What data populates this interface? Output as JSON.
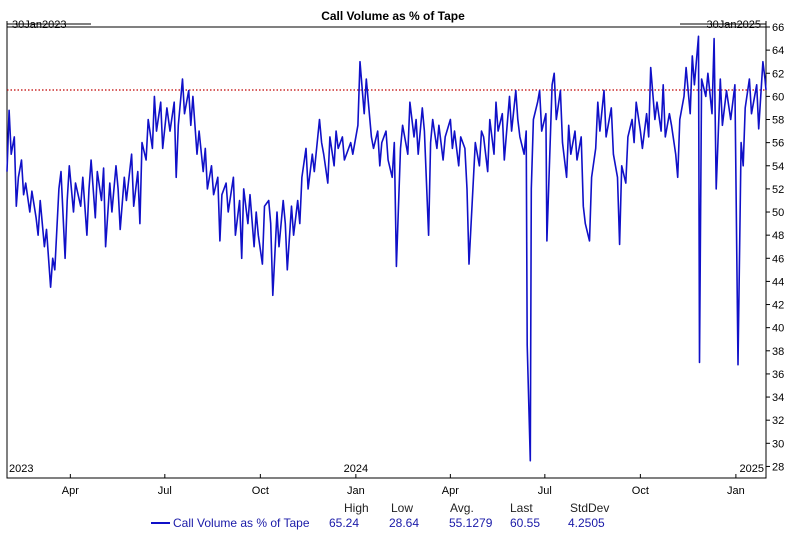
{
  "chart_data": {
    "type": "line",
    "title": "Call Volume as % of Tape",
    "start_label": "30Jan2023",
    "end_label": "30Jan2025",
    "x_range": [
      "2023-01-30",
      "2025-01-30"
    ],
    "ylim": [
      27,
      66
    ],
    "y_ticks": [
      28,
      30,
      32,
      34,
      36,
      38,
      40,
      42,
      44,
      46,
      48,
      50,
      52,
      54,
      56,
      58,
      60,
      62,
      64,
      66
    ],
    "x_month_ticks": [
      {
        "label": "Apr",
        "date": "2023-04-01"
      },
      {
        "label": "Jul",
        "date": "2023-07-01"
      },
      {
        "label": "Oct",
        "date": "2023-10-01"
      },
      {
        "label": "Jan",
        "date": "2024-01-01"
      },
      {
        "label": "Apr",
        "date": "2024-04-01"
      },
      {
        "label": "Jul",
        "date": "2024-07-01"
      },
      {
        "label": "Oct",
        "date": "2024-10-01"
      },
      {
        "label": "Jan",
        "date": "2025-01-01"
      }
    ],
    "year_labels": [
      {
        "label": "2023",
        "date": "2023-01-30"
      },
      {
        "label": "2024",
        "date": "2024-01-01"
      },
      {
        "label": "2025",
        "date": "2025-01-30"
      }
    ],
    "reference_line": {
      "value": 60.55,
      "color": "#c00000"
    },
    "series": [
      {
        "name": "Call Volume as % of Tape",
        "color": "#1010c8",
        "points": [
          [
            "2023-01-30",
            53.5
          ],
          [
            "2023-02-01",
            58.8
          ],
          [
            "2023-02-03",
            55.0
          ],
          [
            "2023-02-06",
            56.5
          ],
          [
            "2023-02-08",
            50.5
          ],
          [
            "2023-02-10",
            53.0
          ],
          [
            "2023-02-13",
            54.5
          ],
          [
            "2023-02-15",
            51.5
          ],
          [
            "2023-02-17",
            52.5
          ],
          [
            "2023-02-21",
            50.0
          ],
          [
            "2023-02-23",
            51.8
          ],
          [
            "2023-02-27",
            49.5
          ],
          [
            "2023-03-01",
            48.0
          ],
          [
            "2023-03-03",
            51.0
          ],
          [
            "2023-03-07",
            47.0
          ],
          [
            "2023-03-09",
            48.5
          ],
          [
            "2023-03-13",
            43.5
          ],
          [
            "2023-03-15",
            46.0
          ],
          [
            "2023-03-17",
            45.0
          ],
          [
            "2023-03-21",
            52.0
          ],
          [
            "2023-03-23",
            53.5
          ],
          [
            "2023-03-27",
            46.0
          ],
          [
            "2023-03-29",
            51.0
          ],
          [
            "2023-03-31",
            54.0
          ],
          [
            "2023-04-04",
            50.0
          ],
          [
            "2023-04-06",
            52.5
          ],
          [
            "2023-04-11",
            50.5
          ],
          [
            "2023-04-13",
            53.0
          ],
          [
            "2023-04-17",
            48.0
          ],
          [
            "2023-04-19",
            52.0
          ],
          [
            "2023-04-21",
            54.5
          ],
          [
            "2023-04-25",
            49.5
          ],
          [
            "2023-04-27",
            53.5
          ],
          [
            "2023-05-01",
            51.0
          ],
          [
            "2023-05-03",
            53.8
          ],
          [
            "2023-05-05",
            47.0
          ],
          [
            "2023-05-09",
            52.5
          ],
          [
            "2023-05-11",
            50.0
          ],
          [
            "2023-05-15",
            54.0
          ],
          [
            "2023-05-17",
            52.0
          ],
          [
            "2023-05-19",
            48.5
          ],
          [
            "2023-05-23",
            53.0
          ],
          [
            "2023-05-25",
            51.0
          ],
          [
            "2023-05-30",
            55.0
          ],
          [
            "2023-06-01",
            50.5
          ],
          [
            "2023-06-05",
            53.5
          ],
          [
            "2023-06-07",
            49.0
          ],
          [
            "2023-06-09",
            56.0
          ],
          [
            "2023-06-13",
            54.5
          ],
          [
            "2023-06-15",
            58.0
          ],
          [
            "2023-06-19",
            55.5
          ],
          [
            "2023-06-21",
            60.0
          ],
          [
            "2023-06-23",
            57.0
          ],
          [
            "2023-06-27",
            59.5
          ],
          [
            "2023-06-29",
            55.5
          ],
          [
            "2023-07-03",
            59.0
          ],
          [
            "2023-07-06",
            57.0
          ],
          [
            "2023-07-10",
            59.5
          ],
          [
            "2023-07-12",
            53.0
          ],
          [
            "2023-07-14",
            57.5
          ],
          [
            "2023-07-18",
            61.5
          ],
          [
            "2023-07-20",
            58.5
          ],
          [
            "2023-07-24",
            60.5
          ],
          [
            "2023-07-26",
            57.5
          ],
          [
            "2023-07-28",
            60.0
          ],
          [
            "2023-08-01",
            55.0
          ],
          [
            "2023-08-03",
            57.0
          ],
          [
            "2023-08-07",
            53.5
          ],
          [
            "2023-08-09",
            55.5
          ],
          [
            "2023-08-11",
            52.0
          ],
          [
            "2023-08-15",
            54.0
          ],
          [
            "2023-08-17",
            51.5
          ],
          [
            "2023-08-21",
            53.0
          ],
          [
            "2023-08-23",
            47.5
          ],
          [
            "2023-08-25",
            51.5
          ],
          [
            "2023-08-29",
            52.5
          ],
          [
            "2023-08-31",
            50.0
          ],
          [
            "2023-09-05",
            53.0
          ],
          [
            "2023-09-07",
            48.0
          ],
          [
            "2023-09-11",
            51.0
          ],
          [
            "2023-09-13",
            46.0
          ],
          [
            "2023-09-15",
            52.0
          ],
          [
            "2023-09-19",
            49.0
          ],
          [
            "2023-09-21",
            51.5
          ],
          [
            "2023-09-25",
            47.0
          ],
          [
            "2023-09-27",
            50.0
          ],
          [
            "2023-09-29",
            48.0
          ],
          [
            "2023-10-03",
            45.5
          ],
          [
            "2023-10-05",
            50.5
          ],
          [
            "2023-10-09",
            51.0
          ],
          [
            "2023-10-11",
            49.0
          ],
          [
            "2023-10-13",
            42.8
          ],
          [
            "2023-10-17",
            50.0
          ],
          [
            "2023-10-19",
            47.0
          ],
          [
            "2023-10-23",
            51.0
          ],
          [
            "2023-10-25",
            49.0
          ],
          [
            "2023-10-27",
            45.0
          ],
          [
            "2023-10-31",
            50.5
          ],
          [
            "2023-11-02",
            48.0
          ],
          [
            "2023-11-06",
            51.0
          ],
          [
            "2023-11-08",
            49.0
          ],
          [
            "2023-11-10",
            53.0
          ],
          [
            "2023-11-14",
            55.5
          ],
          [
            "2023-11-16",
            52.0
          ],
          [
            "2023-11-20",
            55.0
          ],
          [
            "2023-11-22",
            53.5
          ],
          [
            "2023-11-27",
            58.0
          ],
          [
            "2023-11-29",
            56.0
          ],
          [
            "2023-12-01",
            55.0
          ],
          [
            "2023-12-05",
            52.5
          ],
          [
            "2023-12-07",
            56.5
          ],
          [
            "2023-12-11",
            54.0
          ],
          [
            "2023-12-13",
            57.0
          ],
          [
            "2023-12-15",
            55.5
          ],
          [
            "2023-12-19",
            56.5
          ],
          [
            "2023-12-21",
            54.5
          ],
          [
            "2023-12-27",
            56.0
          ],
          [
            "2023-12-29",
            55.0
          ],
          [
            "2024-01-03",
            57.5
          ],
          [
            "2024-01-05",
            63.0
          ],
          [
            "2024-01-09",
            58.5
          ],
          [
            "2024-01-11",
            61.5
          ],
          [
            "2024-01-16",
            56.5
          ],
          [
            "2024-01-18",
            55.5
          ],
          [
            "2024-01-22",
            57.0
          ],
          [
            "2024-01-24",
            54.0
          ],
          [
            "2024-01-26",
            56.0
          ],
          [
            "2024-01-30",
            57.0
          ],
          [
            "2024-02-01",
            54.5
          ],
          [
            "2024-02-05",
            53.0
          ],
          [
            "2024-02-07",
            56.0
          ],
          [
            "2024-02-09",
            45.3
          ],
          [
            "2024-02-13",
            55.5
          ],
          [
            "2024-02-15",
            57.5
          ],
          [
            "2024-02-20",
            55.0
          ],
          [
            "2024-02-22",
            59.5
          ],
          [
            "2024-02-26",
            56.5
          ],
          [
            "2024-02-28",
            58.0
          ],
          [
            "2024-03-01",
            55.0
          ],
          [
            "2024-03-05",
            59.0
          ],
          [
            "2024-03-07",
            57.0
          ],
          [
            "2024-03-11",
            48.0
          ],
          [
            "2024-03-13",
            56.0
          ],
          [
            "2024-03-15",
            58.0
          ],
          [
            "2024-03-19",
            55.5
          ],
          [
            "2024-03-21",
            57.5
          ],
          [
            "2024-03-25",
            54.5
          ],
          [
            "2024-03-27",
            56.5
          ],
          [
            "2024-04-01",
            58.0
          ],
          [
            "2024-04-03",
            55.5
          ],
          [
            "2024-04-05",
            57.0
          ],
          [
            "2024-04-09",
            54.0
          ],
          [
            "2024-04-11",
            56.5
          ],
          [
            "2024-04-15",
            55.5
          ],
          [
            "2024-04-17",
            52.0
          ],
          [
            "2024-04-19",
            45.5
          ],
          [
            "2024-04-23",
            52.5
          ],
          [
            "2024-04-25",
            56.0
          ],
          [
            "2024-04-29",
            54.0
          ],
          [
            "2024-05-01",
            57.0
          ],
          [
            "2024-05-03",
            56.5
          ],
          [
            "2024-05-07",
            53.5
          ],
          [
            "2024-05-09",
            58.0
          ],
          [
            "2024-05-13",
            55.0
          ],
          [
            "2024-05-15",
            59.5
          ],
          [
            "2024-05-17",
            57.0
          ],
          [
            "2024-05-21",
            58.5
          ],
          [
            "2024-05-23",
            54.5
          ],
          [
            "2024-05-28",
            60.0
          ],
          [
            "2024-05-30",
            57.0
          ],
          [
            "2024-06-03",
            60.5
          ],
          [
            "2024-06-05",
            58.0
          ],
          [
            "2024-06-07",
            56.5
          ],
          [
            "2024-06-11",
            55.0
          ],
          [
            "2024-06-13",
            57.0
          ],
          [
            "2024-06-14",
            38.5
          ],
          [
            "2024-06-17",
            28.5
          ],
          [
            "2024-06-18",
            52.0
          ],
          [
            "2024-06-20",
            58.0
          ],
          [
            "2024-06-24",
            59.5
          ],
          [
            "2024-06-26",
            60.5
          ],
          [
            "2024-06-28",
            57.0
          ],
          [
            "2024-07-02",
            58.5
          ],
          [
            "2024-07-03",
            47.5
          ],
          [
            "2024-07-08",
            61.0
          ],
          [
            "2024-07-10",
            62.0
          ],
          [
            "2024-07-12",
            58.0
          ],
          [
            "2024-07-16",
            60.5
          ],
          [
            "2024-07-18",
            56.0
          ],
          [
            "2024-07-22",
            53.0
          ],
          [
            "2024-07-24",
            57.5
          ],
          [
            "2024-07-26",
            55.0
          ],
          [
            "2024-07-30",
            57.0
          ],
          [
            "2024-08-01",
            54.5
          ],
          [
            "2024-08-05",
            56.5
          ],
          [
            "2024-08-07",
            50.5
          ],
          [
            "2024-08-09",
            49.0
          ],
          [
            "2024-08-13",
            47.5
          ],
          [
            "2024-08-15",
            53.0
          ],
          [
            "2024-08-19",
            55.5
          ],
          [
            "2024-08-21",
            59.5
          ],
          [
            "2024-08-23",
            57.0
          ],
          [
            "2024-08-27",
            60.5
          ],
          [
            "2024-08-29",
            56.5
          ],
          [
            "2024-09-03",
            59.0
          ],
          [
            "2024-09-05",
            55.0
          ],
          [
            "2024-09-09",
            53.0
          ],
          [
            "2024-09-11",
            47.2
          ],
          [
            "2024-09-13",
            54.0
          ],
          [
            "2024-09-17",
            52.5
          ],
          [
            "2024-09-19",
            56.5
          ],
          [
            "2024-09-23",
            58.0
          ],
          [
            "2024-09-25",
            56.0
          ],
          [
            "2024-09-27",
            59.5
          ],
          [
            "2024-10-01",
            57.0
          ],
          [
            "2024-10-03",
            55.5
          ],
          [
            "2024-10-07",
            58.5
          ],
          [
            "2024-10-09",
            56.5
          ],
          [
            "2024-10-11",
            62.5
          ],
          [
            "2024-10-15",
            58.0
          ],
          [
            "2024-10-17",
            59.5
          ],
          [
            "2024-10-21",
            57.0
          ],
          [
            "2024-10-23",
            61.0
          ],
          [
            "2024-10-25",
            56.5
          ],
          [
            "2024-10-29",
            58.5
          ],
          [
            "2024-10-31",
            57.5
          ],
          [
            "2024-11-04",
            55.0
          ],
          [
            "2024-11-06",
            53.0
          ],
          [
            "2024-11-08",
            58.0
          ],
          [
            "2024-11-12",
            60.0
          ],
          [
            "2024-11-14",
            62.5
          ],
          [
            "2024-11-18",
            58.5
          ],
          [
            "2024-11-20",
            63.5
          ],
          [
            "2024-11-22",
            61.0
          ],
          [
            "2024-11-26",
            65.2
          ],
          [
            "2024-11-27",
            37.0
          ],
          [
            "2024-11-29",
            61.5
          ],
          [
            "2024-12-03",
            60.0
          ],
          [
            "2024-12-05",
            62.0
          ],
          [
            "2024-12-09",
            58.5
          ],
          [
            "2024-12-11",
            65.0
          ],
          [
            "2024-12-13",
            52.0
          ],
          [
            "2024-12-17",
            61.5
          ],
          [
            "2024-12-19",
            57.5
          ],
          [
            "2024-12-23",
            60.5
          ],
          [
            "2024-12-27",
            58.0
          ],
          [
            "2024-12-31",
            61.0
          ],
          [
            "2025-01-03",
            36.8
          ],
          [
            "2025-01-06",
            56.0
          ],
          [
            "2025-01-08",
            54.0
          ],
          [
            "2025-01-10",
            59.0
          ],
          [
            "2025-01-14",
            61.5
          ],
          [
            "2025-01-16",
            58.5
          ],
          [
            "2025-01-21",
            61.0
          ],
          [
            "2025-01-23",
            57.2
          ],
          [
            "2025-01-27",
            63.0
          ],
          [
            "2025-01-29",
            61.5
          ],
          [
            "2025-01-30",
            60.55
          ]
        ]
      }
    ]
  },
  "stats": {
    "legend_label": "Call Volume as % of Tape",
    "headers": [
      "High",
      "Low",
      "Avg.",
      "Last",
      "StdDev"
    ],
    "values": [
      "65.24",
      "28.64",
      "55.1279",
      "60.55",
      "4.2505"
    ]
  }
}
